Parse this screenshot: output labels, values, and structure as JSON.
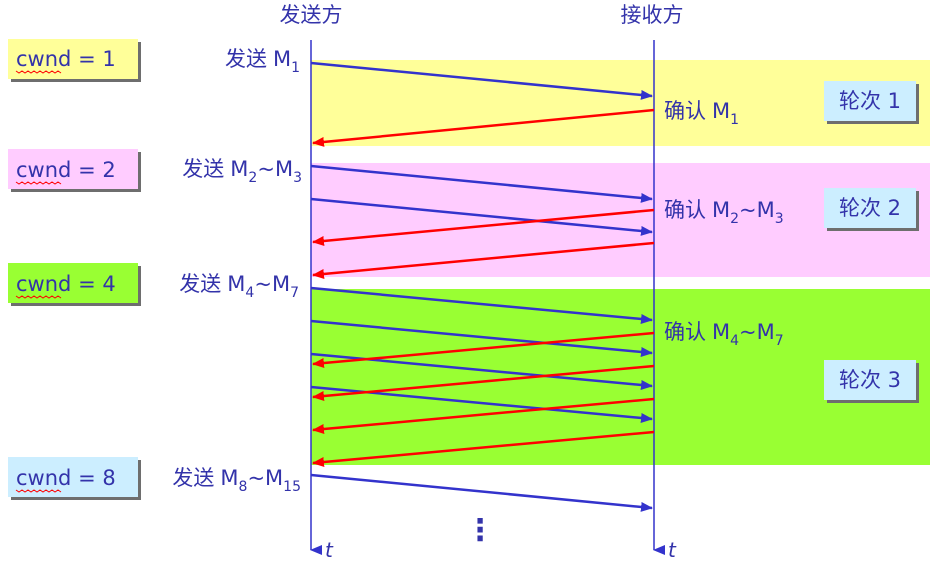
{
  "header": {
    "sender_label": "发送方",
    "receiver_label": "接收方"
  },
  "time_axis_label": "t",
  "continuation_marker": "⋮",
  "colors": {
    "yellow_band": "#ffff99",
    "pink_band": "#ffccff",
    "green_band": "#99ff33",
    "cwnd_yellow": "#ffff99",
    "cwnd_pink": "#ffccff",
    "cwnd_green": "#99ff33",
    "cwnd_blue": "#cceeff",
    "round_box": "#cceeff",
    "data_arrow": "#3333cc",
    "ack_arrow": "#ff0000",
    "text": "#3333aa",
    "spellcheck": "#ff0000"
  },
  "cwnd": [
    {
      "prefix": "cwnd",
      "value": "= 1"
    },
    {
      "prefix": "cwnd",
      "value": "= 2"
    },
    {
      "prefix": "cwnd",
      "value": "= 4"
    },
    {
      "prefix": "cwnd",
      "value": "= 8"
    }
  ],
  "send_labels": [
    {
      "word": "发送",
      "m1": "M",
      "s1": "1",
      "tilde": "",
      "m2": "",
      "s2": ""
    },
    {
      "word": "发送",
      "m1": "M",
      "s1": "2",
      "tilde": "~",
      "m2": "M",
      "s2": "3"
    },
    {
      "word": "发送",
      "m1": "M",
      "s1": "4",
      "tilde": "~",
      "m2": "M",
      "s2": "7"
    },
    {
      "word": "发送",
      "m1": "M",
      "s1": "8",
      "tilde": "~",
      "m2": "M",
      "s2": "15"
    }
  ],
  "ack_labels": [
    {
      "word": "确认",
      "m1": "M",
      "s1": "1",
      "tilde": "",
      "m2": "",
      "s2": ""
    },
    {
      "word": "确认",
      "m1": "M",
      "s1": "2",
      "tilde": "~",
      "m2": "M",
      "s2": "3"
    },
    {
      "word": "确认",
      "m1": "M",
      "s1": "4",
      "tilde": "~",
      "m2": "M",
      "s2": "7"
    }
  ],
  "rounds": [
    {
      "label": "轮次 1"
    },
    {
      "label": "轮次 2"
    },
    {
      "label": "轮次 3"
    }
  ]
}
